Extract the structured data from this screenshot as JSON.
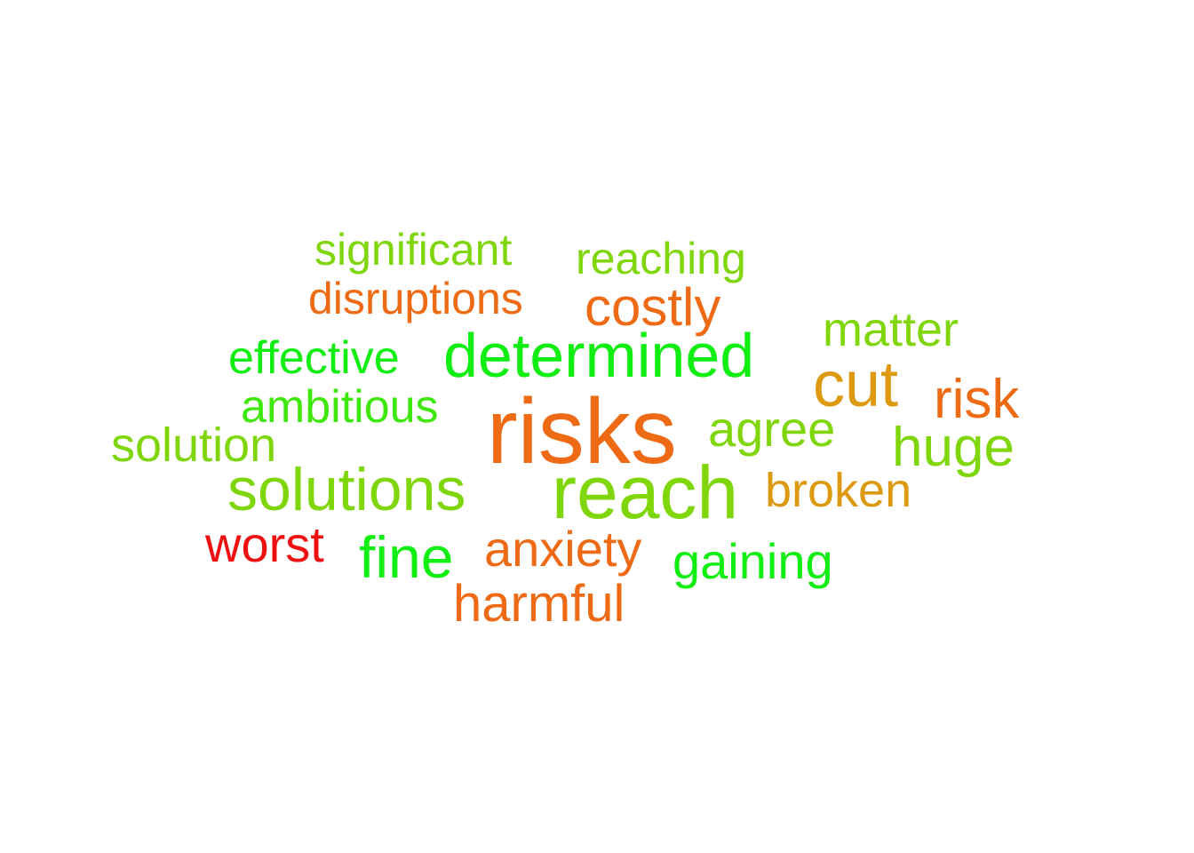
{
  "words": {
    "significant": {
      "text": "significant",
      "color": "#7fd60a"
    },
    "reaching": {
      "text": "reaching",
      "color": "#7fd60a"
    },
    "disruptions": {
      "text": "disruptions",
      "color": "#ee6a14"
    },
    "costly": {
      "text": "costly",
      "color": "#ee6a14"
    },
    "matter": {
      "text": "matter",
      "color": "#7fd60a"
    },
    "effective": {
      "text": "effective",
      "color": "#11ee11"
    },
    "determined": {
      "text": "determined",
      "color": "#11ee11"
    },
    "cut": {
      "text": "cut",
      "color": "#dd9a10"
    },
    "risk": {
      "text": "risk",
      "color": "#ee6a14"
    },
    "ambitious": {
      "text": "ambitious",
      "color": "#3ee80c"
    },
    "risks": {
      "text": "risks",
      "color": "#ee6a14"
    },
    "agree": {
      "text": "agree",
      "color": "#7fd60a"
    },
    "solution": {
      "text": "solution",
      "color": "#7fd60a"
    },
    "huge": {
      "text": "huge",
      "color": "#7fd60a"
    },
    "solutions": {
      "text": "solutions",
      "color": "#7fd60a"
    },
    "reach": {
      "text": "reach",
      "color": "#7fd60a"
    },
    "broken": {
      "text": "broken",
      "color": "#dd9a10"
    },
    "worst": {
      "text": "worst",
      "color": "#ee1111"
    },
    "fine": {
      "text": "fine",
      "color": "#11ee11"
    },
    "anxiety": {
      "text": "anxiety",
      "color": "#ee6a14"
    },
    "gaining": {
      "text": "gaining",
      "color": "#11ee11"
    },
    "harmful": {
      "text": "harmful",
      "color": "#ee6a14"
    }
  }
}
